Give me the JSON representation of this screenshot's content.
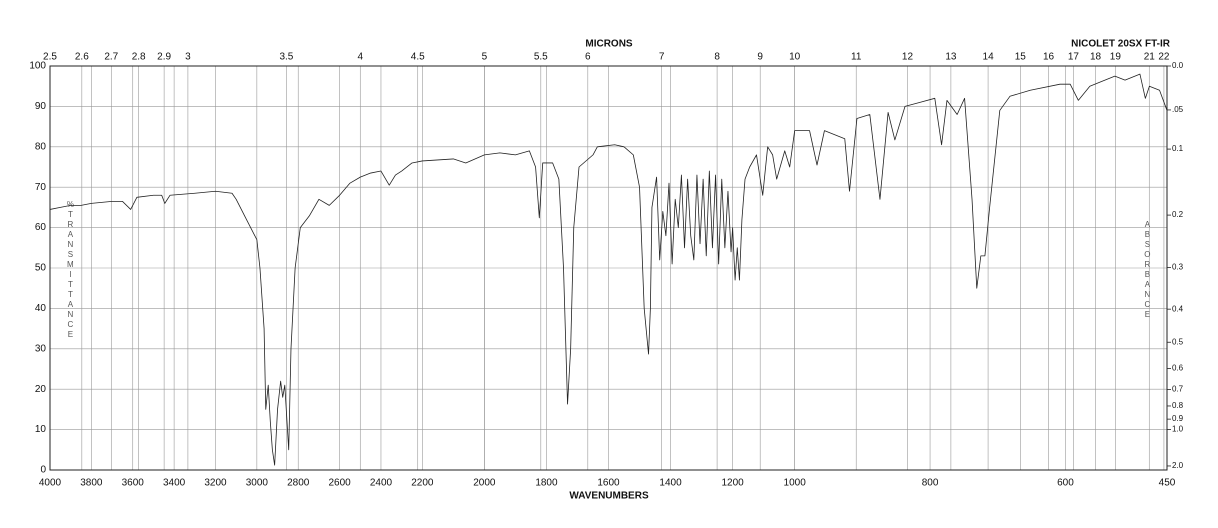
{
  "chart_data": {
    "type": "line",
    "title": "NICOLET 20SX FT-IR",
    "xlabel": "WAVENUMBERS",
    "x2label": "MICRONS",
    "ylabel": "%TRANSMITTANCE",
    "y2label": "ABSORBANCE",
    "xlim": [
      4000,
      450
    ],
    "xscale_breaks": [
      2200,
      1000
    ],
    "xticks": [
      4000,
      3800,
      3600,
      3400,
      3200,
      3000,
      2800,
      2600,
      2400,
      2200,
      2000,
      1800,
      1600,
      1400,
      1200,
      1000,
      800,
      600,
      450
    ],
    "x2ticks": [
      2.5,
      2.6,
      2.7,
      2.8,
      2.9,
      3,
      3.5,
      4,
      4.5,
      5,
      5.5,
      6,
      7,
      8,
      9,
      10,
      11,
      12,
      13,
      14,
      15,
      16,
      17,
      18,
      19,
      21,
      22
    ],
    "ylim": [
      0,
      100
    ],
    "yticks": [
      0,
      10,
      20,
      30,
      40,
      50,
      60,
      70,
      80,
      90,
      100
    ],
    "y2scale": "absorbance",
    "y2lim": [
      2,
      0
    ],
    "y2ticks": [
      {
        "value": 0,
        "label": "0.0"
      },
      {
        "value": 0.05,
        "label": ".05"
      },
      {
        "value": 0.1,
        "label": "0.1"
      },
      0.2,
      0.3,
      0.4,
      0.5,
      0.6,
      0.7,
      0.8,
      0.9,
      {
        "value": 1,
        "label": "1.0"
      },
      {
        "value": 2,
        "label": "2.0"
      }
    ],
    "grid": true,
    "series": [
      {
        "color": "#222222",
        "x": [
          4000,
          3950,
          3900,
          3850,
          3800,
          3700,
          3650,
          3610,
          3580,
          3500,
          3460,
          3445,
          3420,
          3300,
          3200,
          3120,
          3100,
          3050,
          3000,
          2985,
          2965,
          2957,
          2945,
          2935,
          2925,
          2914,
          2900,
          2885,
          2875,
          2865,
          2846,
          2835,
          2815,
          2790,
          2745,
          2700,
          2650,
          2600,
          2550,
          2500,
          2450,
          2400,
          2360,
          2330,
          2300,
          2250,
          2200,
          2100,
          2060,
          2000,
          1950,
          1900,
          1855,
          1835,
          1823,
          1812,
          1780,
          1760,
          1745,
          1732,
          1722,
          1712,
          1695,
          1650,
          1636,
          1580,
          1550,
          1520,
          1500,
          1485,
          1471,
          1465,
          1460,
          1445,
          1435,
          1425,
          1415,
          1405,
          1395,
          1385,
          1375,
          1365,
          1355,
          1345,
          1335,
          1325,
          1315,
          1305,
          1295,
          1285,
          1275,
          1265,
          1255,
          1245,
          1235,
          1225,
          1215,
          1205,
          1200,
          1192,
          1185,
          1178,
          1170,
          1160,
          1145,
          1123,
          1103,
          1087,
          1071,
          1058,
          1032,
          1016,
          1000,
          978,
          967,
          956,
          926,
          919,
          908,
          889,
          874,
          862,
          852,
          837,
          815,
          793,
          783,
          775,
          760,
          749,
          738,
          731,
          725,
          719,
          712,
          697,
          682,
          652,
          608,
          593,
          581,
          564,
          549,
          527,
          512,
          490,
          482,
          476,
          461,
          450
        ],
        "values": [
          64.5,
          65,
          65.5,
          65.5,
          66,
          66.5,
          66.5,
          64.5,
          67.5,
          68,
          68,
          66,
          68,
          68.5,
          69,
          68.5,
          67,
          62,
          57,
          50,
          35,
          15,
          21,
          12,
          5,
          1.2,
          15,
          22,
          18,
          21,
          5,
          30,
          50,
          60,
          63,
          67,
          65.5,
          68,
          71,
          72.5,
          73.5,
          74,
          70.5,
          73,
          74,
          76,
          76.5,
          77,
          76,
          78,
          78.5,
          78,
          79,
          75,
          62.4,
          76,
          76,
          72,
          50,
          16.3,
          30,
          60,
          75,
          78,
          80,
          80.5,
          80,
          78,
          70,
          40,
          28.7,
          40,
          65,
          72.5,
          52,
          64,
          58,
          71,
          51,
          67,
          60,
          73,
          55,
          72,
          58,
          52,
          73,
          56,
          72,
          53,
          74,
          55,
          73,
          51,
          72,
          55,
          69,
          54,
          60,
          47,
          55,
          47,
          62,
          72,
          75,
          78,
          68,
          80,
          78,
          72,
          79,
          75,
          84,
          84,
          75.5,
          84,
          82,
          69,
          87,
          88,
          67,
          88.5,
          81.7,
          90,
          91,
          92,
          80.5,
          91.5,
          88,
          92,
          67,
          45,
          53,
          53,
          65,
          89,
          92.5,
          94,
          95.5,
          95.5,
          91.5,
          95,
          96,
          97.5,
          96.5,
          98,
          92,
          95,
          94,
          89
        ]
      }
    ]
  }
}
